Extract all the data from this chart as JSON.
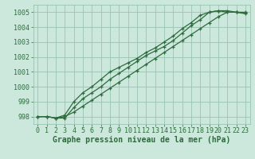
{
  "xlabel": "Graphe pression niveau de la mer (hPa)",
  "background_color": "#cce8dc",
  "grid_color": "#99c4b0",
  "line_color": "#2d6b3c",
  "xlim_min": -0.5,
  "xlim_max": 23.5,
  "ylim_min": 997.5,
  "ylim_max": 1005.5,
  "yticks": [
    998,
    999,
    1000,
    1001,
    1002,
    1003,
    1004,
    1005
  ],
  "xticks": [
    0,
    1,
    2,
    3,
    4,
    5,
    6,
    7,
    8,
    9,
    10,
    11,
    12,
    13,
    14,
    15,
    16,
    17,
    18,
    19,
    20,
    21,
    22,
    23
  ],
  "series1_x": [
    0,
    1,
    2,
    3,
    4,
    5,
    6,
    7,
    8,
    9,
    10,
    11,
    12,
    13,
    14,
    15,
    16,
    17,
    18,
    19,
    20,
    21,
    22,
    23
  ],
  "series1_y": [
    998.0,
    998.0,
    997.9,
    998.0,
    998.3,
    998.7,
    999.1,
    999.5,
    999.9,
    1000.3,
    1000.7,
    1001.1,
    1001.5,
    1001.9,
    1002.3,
    1002.7,
    1003.1,
    1003.5,
    1003.9,
    1004.3,
    1004.7,
    1005.0,
    1005.0,
    1004.9
  ],
  "series2_x": [
    0,
    1,
    2,
    3,
    4,
    5,
    6,
    7,
    8,
    9,
    10,
    11,
    12,
    13,
    14,
    15,
    16,
    17,
    18,
    19,
    20,
    21,
    22,
    23
  ],
  "series2_y": [
    998.0,
    998.0,
    997.9,
    997.9,
    998.6,
    999.2,
    999.6,
    1000.0,
    1000.5,
    1000.9,
    1001.3,
    1001.7,
    1002.1,
    1002.4,
    1002.7,
    1003.1,
    1003.6,
    1004.1,
    1004.5,
    1005.0,
    1005.1,
    1005.1,
    1005.0,
    1005.0
  ],
  "series3_x": [
    0,
    1,
    2,
    3,
    4,
    5,
    6,
    7,
    8,
    9,
    10,
    11,
    12,
    13,
    14,
    15,
    16,
    17,
    18,
    19,
    20,
    21,
    22,
    23
  ],
  "series3_y": [
    998.0,
    998.0,
    997.9,
    998.1,
    999.0,
    999.6,
    1000.0,
    1000.5,
    1001.0,
    1001.3,
    1001.6,
    1001.9,
    1002.3,
    1002.6,
    1003.0,
    1003.4,
    1003.9,
    1004.3,
    1004.8,
    1005.0,
    1005.1,
    1005.0,
    1005.0,
    1004.95
  ],
  "marker": "+",
  "markersize": 3.5,
  "linewidth": 0.9,
  "xlabel_fontsize": 7,
  "tick_fontsize": 6
}
